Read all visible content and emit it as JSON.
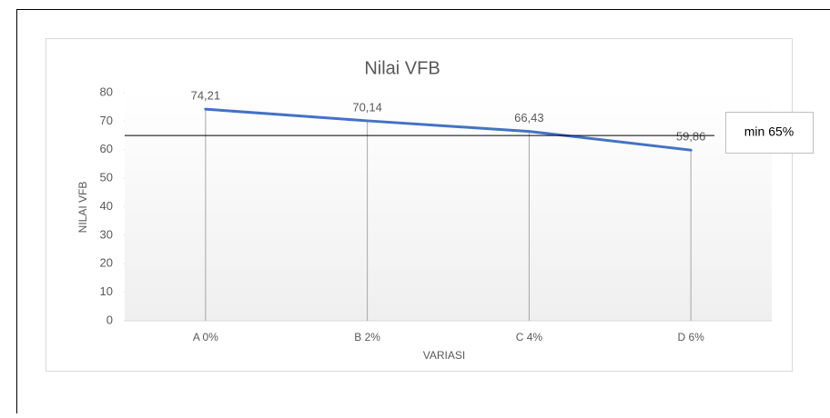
{
  "chart_data": {
    "type": "line",
    "title": "Nilai VFB",
    "x_label": "VARIASI",
    "y_label": "NILAI VFB",
    "categories": [
      "A 0%",
      "B 2%",
      "C 4%",
      "D 6%"
    ],
    "series": [
      {
        "name": "Nilai VFB",
        "color": "#4472c4",
        "values": [
          74.21,
          70.14,
          66.43,
          59.86
        ],
        "value_labels": [
          "74,21",
          "70,14",
          "66,43",
          "59,86"
        ]
      }
    ],
    "ylim": [
      0,
      80
    ],
    "yticks": [
      0,
      10,
      20,
      30,
      40,
      50,
      60,
      70,
      80
    ],
    "drop_lines": true,
    "reference": {
      "value": 65,
      "label": "min 65%"
    }
  }
}
